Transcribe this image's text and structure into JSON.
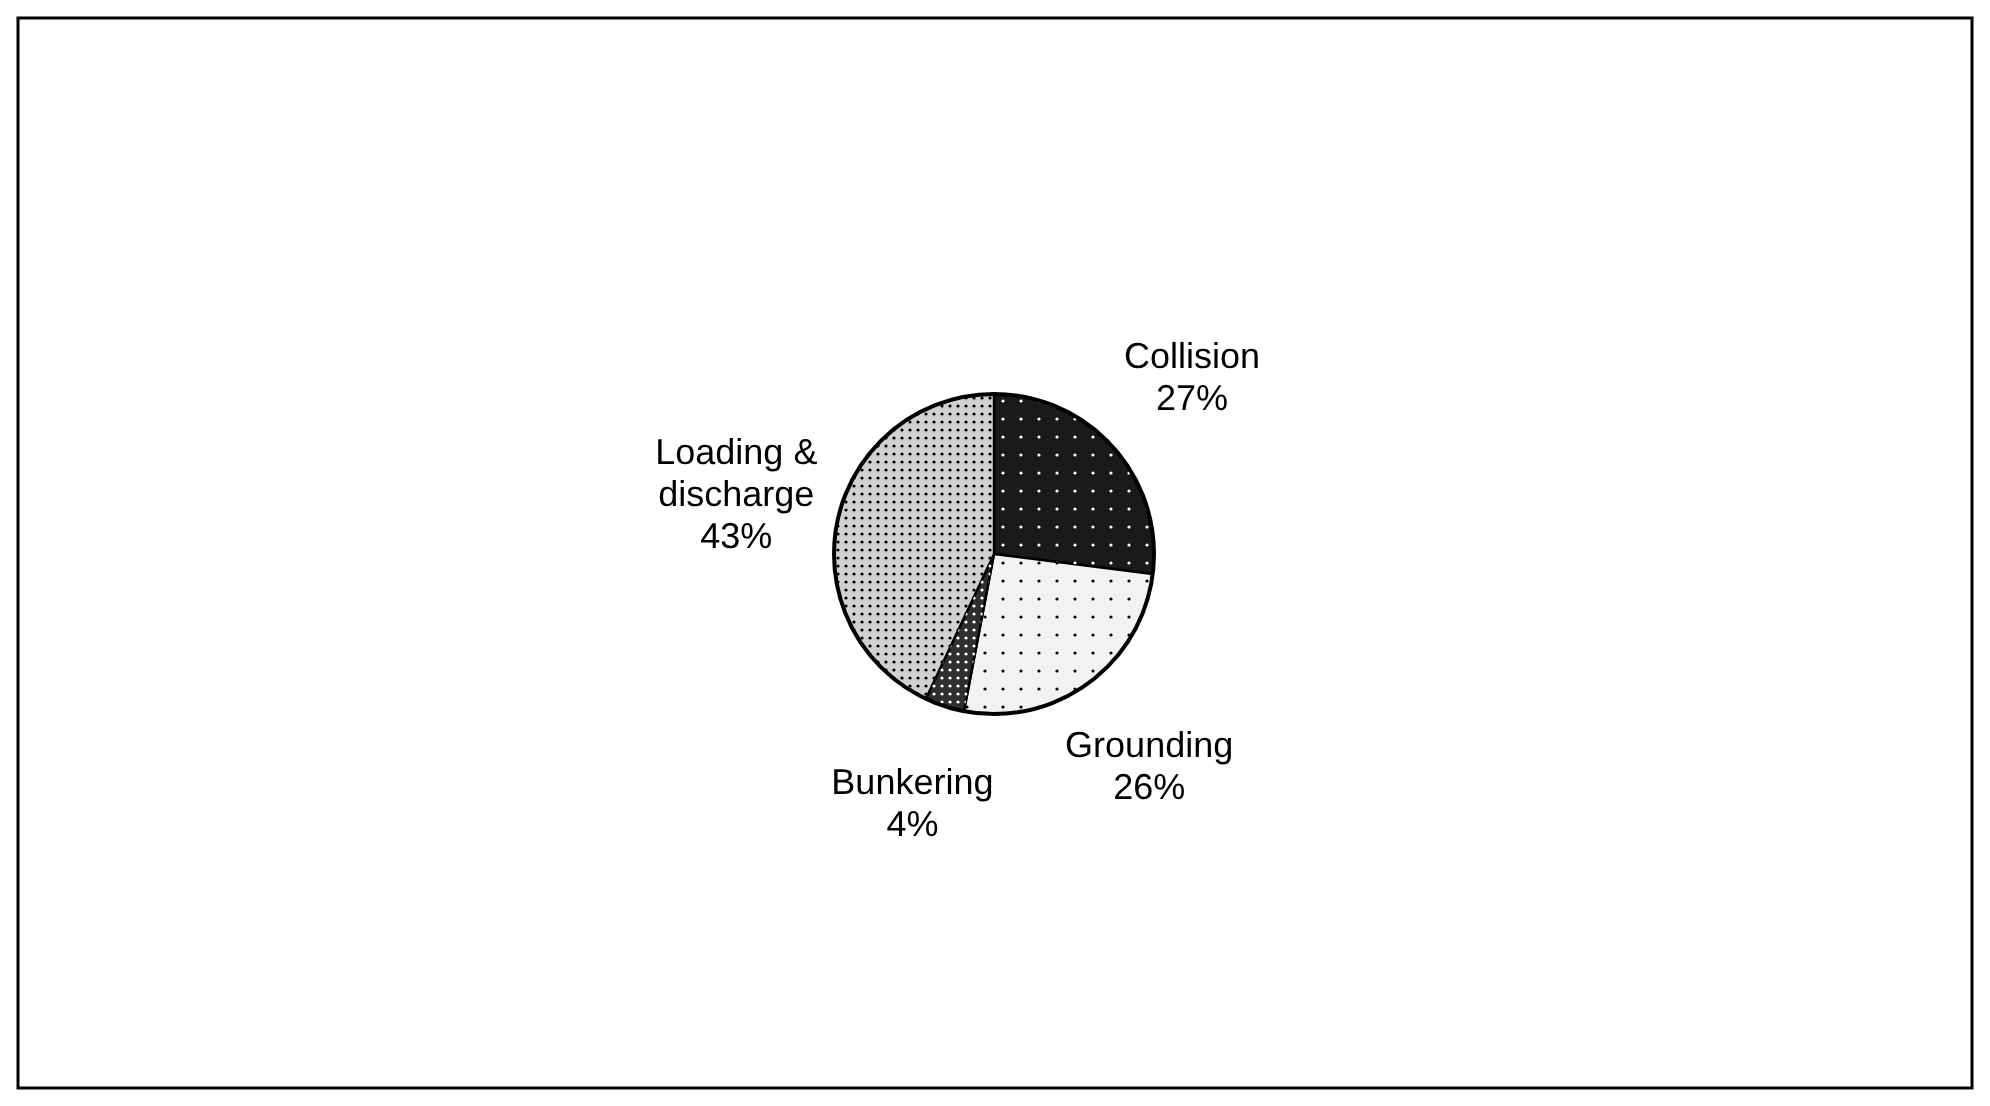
{
  "chart_data": {
    "type": "pie",
    "categories": [
      "Collision",
      "Grounding",
      "Bunkering",
      "Loading & discharge"
    ],
    "values": [
      27,
      26,
      4,
      43
    ],
    "colors": [
      "#1a1a1a",
      "#f2f2f2",
      "#2e2e2e",
      "#d0d0d0"
    ],
    "value_labels": [
      "27%",
      "26%",
      "4%",
      "43%"
    ]
  }
}
